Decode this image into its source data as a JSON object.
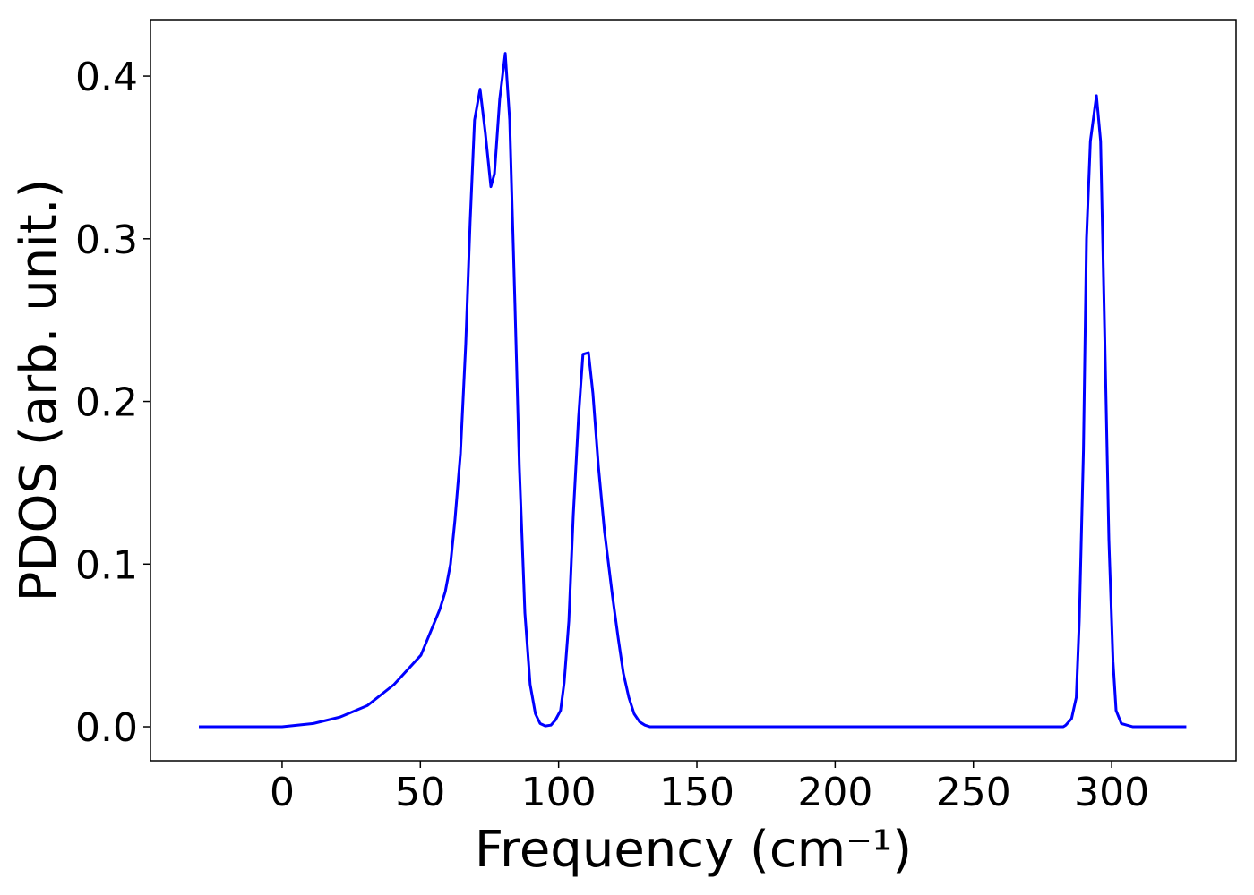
{
  "chart_data": {
    "type": "line",
    "xlabel": "Frequency (cm⁻¹)",
    "ylabel": "PDOS (arb. unit.)",
    "x": [
      -30.1,
      0,
      11.3,
      21,
      30.8,
      40.5,
      50.2,
      57,
      59,
      60.9,
      62.5,
      64.5,
      66.4,
      68,
      69.6,
      71.6,
      73.5,
      75.5,
      76.8,
      78.7,
      80.7,
      82.3,
      84.2,
      85.8,
      87.8,
      89.7,
      91.6,
      93.3,
      95.2,
      97.2,
      98.8,
      100.7,
      102,
      103.7,
      105.3,
      107.2,
      108.8,
      110.8,
      112.4,
      114.4,
      116.6,
      119.5,
      121.5,
      123.4,
      125.4,
      127.3,
      129.3,
      131.2,
      133.1,
      282.5,
      283.4,
      285.5,
      287.2,
      288.3,
      289.8,
      290.9,
      292.3,
      294.5,
      296,
      297.5,
      299,
      300.5,
      301.6,
      303.5,
      305.5,
      307.7,
      327
    ],
    "series": [
      {
        "name": "PDOS",
        "color": "#0000ff",
        "values": [
          0,
          0,
          0.002,
          0.006,
          0.013,
          0.026,
          0.044,
          0.072,
          0.083,
          0.1,
          0.127,
          0.168,
          0.235,
          0.31,
          0.373,
          0.392,
          0.365,
          0.332,
          0.34,
          0.386,
          0.414,
          0.373,
          0.26,
          0.16,
          0.07,
          0.026,
          0.008,
          0.002,
          0.0005,
          0.001,
          0.004,
          0.01,
          0.027,
          0.065,
          0.13,
          0.19,
          0.229,
          0.23,
          0.205,
          0.16,
          0.12,
          0.08,
          0.055,
          0.033,
          0.018,
          0.008,
          0.003,
          0.001,
          0,
          0,
          0.001,
          0.005,
          0.018,
          0.065,
          0.17,
          0.3,
          0.36,
          0.388,
          0.36,
          0.24,
          0.115,
          0.04,
          0.01,
          0.002,
          0.001,
          0,
          0
        ]
      }
    ],
    "xlim": [
      -47.6,
      345
    ],
    "ylim": [
      -0.0209,
      0.4347
    ],
    "xticks": [
      0,
      50,
      100,
      150,
      200,
      250,
      300
    ],
    "yticks": [
      {
        "value": 0,
        "label": "0.0"
      },
      0.1,
      0.2,
      0.3,
      0.4
    ],
    "grid": false
  }
}
